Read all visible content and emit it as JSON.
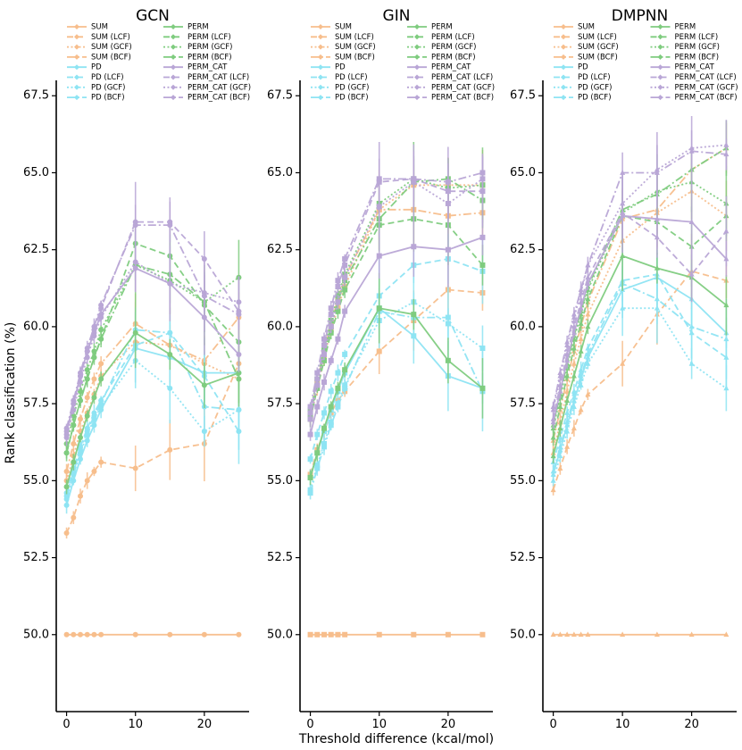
{
  "chart_data": {
    "type": "line",
    "title": "",
    "xlabel": "Threshold difference (kcal/mol)",
    "ylabel": "Rank classification (%)",
    "x": [
      0,
      1,
      2,
      3,
      4,
      5,
      10,
      15,
      20,
      25
    ],
    "xticks": [
      "0",
      "10",
      "20"
    ],
    "xlim": [
      -1.5,
      26.5
    ],
    "yticks": [
      "50.0",
      "52.5",
      "55.0",
      "57.5",
      "60.0",
      "62.5",
      "65.0",
      "67.5"
    ],
    "ylim": [
      47.5,
      68
    ],
    "colors": {
      "SUM": "#f7be8c",
      "PD": "#8ee4f3",
      "PERM": "#7fcc7f",
      "PERM_CAT": "#b9a6d6"
    },
    "legend": [
      [
        "SUM",
        "SUM (LCF)",
        "SUM (GCF)",
        "SUM (BCF)",
        "PD",
        "PD (LCF)",
        "PD (GCF)",
        "PD (BCF)"
      ],
      [
        "PERM",
        "PERM (LCF)",
        "PERM (GCF)",
        "PERM (BCF)",
        "PERM_CAT",
        "PERM_CAT (LCF)",
        "PERM_CAT (GCF)",
        "PERM_CAT (BCF)"
      ]
    ],
    "panels": [
      {
        "title": "GCN",
        "marker": "circle",
        "series": [
          {
            "name": "SUM",
            "values": [
              50,
              50,
              50,
              50,
              50,
              50,
              50,
              50,
              50,
              50
            ]
          },
          {
            "name": "SUM (LCF)",
            "values": [
              53.3,
              53.8,
              54.5,
              55.0,
              55.3,
              55.6,
              55.4,
              56.0,
              56.2,
              58.8
            ]
          },
          {
            "name": "SUM (GCF)",
            "values": [
              55.0,
              55.8,
              56.6,
              57.2,
              57.8,
              58.4,
              59.5,
              59.4,
              58.8,
              58.3
            ]
          },
          {
            "name": "SUM (BCF)",
            "values": [
              55.3,
              56.2,
              57.0,
              57.7,
              58.3,
              58.8,
              60.1,
              59.4,
              58.9,
              60.3
            ]
          },
          {
            "name": "PD",
            "values": [
              54.2,
              55.0,
              55.7,
              56.3,
              56.8,
              57.3,
              59.3,
              59.0,
              58.5,
              58.5
            ]
          },
          {
            "name": "PD (LCF)",
            "values": [
              54.6,
              55.4,
              56.1,
              56.7,
              57.2,
              57.6,
              59.4,
              59.8,
              58.4,
              56.6
            ]
          },
          {
            "name": "PD (GCF)",
            "values": [
              54.4,
              55.2,
              55.9,
              56.5,
              57.0,
              57.4,
              58.9,
              58.0,
              56.6,
              57.3
            ]
          },
          {
            "name": "PD (BCF)",
            "values": [
              54.5,
              55.3,
              56.0,
              56.6,
              57.1,
              57.5,
              59.9,
              59.8,
              57.4,
              57.3
            ]
          },
          {
            "name": "PERM",
            "values": [
              54.8,
              55.6,
              56.4,
              57.1,
              57.7,
              58.3,
              59.8,
              59.1,
              58.1,
              58.5
            ]
          },
          {
            "name": "PERM (LCF)",
            "values": [
              55.9,
              56.8,
              57.6,
              58.3,
              59.0,
              59.6,
              62.7,
              62.3,
              60.7,
              59.5
            ]
          },
          {
            "name": "PERM (GCF)",
            "values": [
              56.2,
              57.1,
              57.9,
              58.6,
              59.2,
              59.9,
              62.0,
              61.5,
              60.8,
              61.6
            ]
          },
          {
            "name": "PERM (BCF)",
            "values": [
              55.9,
              56.8,
              57.6,
              58.3,
              59.0,
              59.6,
              62.0,
              61.7,
              60.8,
              58.3
            ]
          },
          {
            "name": "PERM_CAT",
            "values": [
              56.6,
              57.5,
              58.4,
              59.2,
              59.8,
              60.4,
              61.9,
              61.4,
              60.3,
              59.1
            ]
          },
          {
            "name": "PERM_CAT (LCF)",
            "values": [
              56.5,
              57.5,
              58.4,
              59.2,
              59.9,
              60.6,
              63.4,
              63.4,
              62.2,
              60.5
            ]
          },
          {
            "name": "PERM_CAT (GCF)",
            "values": [
              56.4,
              57.3,
              58.2,
              59.0,
              59.7,
              60.3,
              62.1,
              61.4,
              61.1,
              60.8
            ]
          },
          {
            "name": "PERM_CAT (BCF)",
            "values": [
              56.7,
              57.6,
              58.5,
              59.3,
              60.0,
              60.7,
              63.3,
              63.3,
              61.0,
              60.4
            ]
          }
        ]
      },
      {
        "title": "GIN",
        "marker": "square",
        "series": [
          {
            "name": "SUM",
            "values": [
              50,
              50,
              50,
              50,
              50,
              50,
              50,
              50,
              50,
              50
            ]
          },
          {
            "name": "SUM (LCF)",
            "values": [
              55.2,
              56.0,
              56.6,
              57.2,
              57.6,
              57.9,
              59.2,
              60.2,
              61.2,
              61.1
            ]
          },
          {
            "name": "SUM (GCF)",
            "values": [
              57.0,
              58.0,
              59.0,
              59.9,
              60.6,
              61.3,
              63.8,
              64.6,
              64.6,
              64.6
            ]
          },
          {
            "name": "SUM (BCF)",
            "values": [
              57.1,
              58.2,
              59.2,
              60.1,
              60.9,
              61.6,
              63.8,
              63.8,
              63.6,
              63.7
            ]
          },
          {
            "name": "PD",
            "values": [
              55.1,
              55.9,
              56.6,
              57.3,
              57.9,
              58.5,
              60.6,
              59.7,
              58.4,
              58.0
            ]
          },
          {
            "name": "PD (LCF)",
            "values": [
              55.7,
              56.5,
              57.2,
              57.9,
              58.5,
              59.1,
              61.0,
              62.0,
              62.2,
              61.8
            ]
          },
          {
            "name": "PD (GCF)",
            "values": [
              54.7,
              55.5,
              56.2,
              56.9,
              57.5,
              58.1,
              60.2,
              60.8,
              60.1,
              59.3
            ]
          },
          {
            "name": "PD (BCF)",
            "values": [
              54.6,
              55.4,
              56.1,
              56.8,
              57.4,
              58.0,
              60.5,
              60.3,
              60.3,
              57.9
            ]
          },
          {
            "name": "PERM",
            "values": [
              55.1,
              55.9,
              56.7,
              57.4,
              58.0,
              58.6,
              60.6,
              60.4,
              58.9,
              58.0
            ]
          },
          {
            "name": "PERM (LCF)",
            "values": [
              57.0,
              58.0,
              58.9,
              59.8,
              60.5,
              61.2,
              63.3,
              63.5,
              63.3,
              62.0
            ]
          },
          {
            "name": "PERM (GCF)",
            "values": [
              57.3,
              58.3,
              59.3,
              60.2,
              61.0,
              61.7,
              64.0,
              64.8,
              64.5,
              64.6
            ]
          },
          {
            "name": "PERM (BCF)",
            "values": [
              57.1,
              58.1,
              59.1,
              60.0,
              60.8,
              61.5,
              63.5,
              64.7,
              64.8,
              64.1
            ]
          },
          {
            "name": "PERM_CAT",
            "values": [
              56.5,
              57.4,
              58.2,
              58.9,
              59.6,
              60.5,
              62.3,
              62.6,
              62.5,
              62.9
            ]
          },
          {
            "name": "PERM_CAT (LCF)",
            "values": [
              57.2,
              58.3,
              59.4,
              60.4,
              61.3,
              62.0,
              64.7,
              64.8,
              64.4,
              64.4
            ]
          },
          {
            "name": "PERM_CAT (GCF)",
            "values": [
              57.0,
              58.1,
              59.1,
              60.0,
              60.8,
              61.6,
              63.9,
              64.7,
              64.0,
              64.8
            ]
          },
          {
            "name": "PERM_CAT (BCF)",
            "values": [
              57.4,
              58.5,
              59.6,
              60.6,
              61.5,
              62.2,
              64.8,
              64.8,
              64.7,
              65.0
            ]
          }
        ]
      },
      {
        "title": "DMPNN",
        "marker": "triangle",
        "series": [
          {
            "name": "SUM",
            "values": [
              50,
              50,
              50,
              50,
              50,
              50,
              50,
              50,
              50,
              50
            ]
          },
          {
            "name": "SUM (LCF)",
            "values": [
              54.7,
              55.4,
              56.1,
              56.7,
              57.3,
              57.8,
              58.8,
              60.4,
              61.8,
              61.5
            ]
          },
          {
            "name": "SUM (GCF)",
            "values": [
              55.9,
              56.9,
              57.9,
              58.8,
              59.6,
              60.4,
              62.8,
              63.7,
              64.4,
              63.6
            ]
          },
          {
            "name": "SUM (BCF)",
            "values": [
              56.3,
              57.3,
              58.3,
              59.2,
              60.0,
              60.8,
              63.5,
              63.8,
              65.1,
              65.8
            ]
          },
          {
            "name": "PD",
            "values": [
              55.2,
              56.0,
              56.8,
              57.6,
              58.3,
              59.0,
              61.2,
              61.6,
              60.9,
              59.8
            ]
          },
          {
            "name": "PD (LCF)",
            "values": [
              55.6,
              56.4,
              57.2,
              57.9,
              58.6,
              59.3,
              61.5,
              61.7,
              59.8,
              59.0
            ]
          },
          {
            "name": "PD (GCF)",
            "values": [
              55.0,
              55.8,
              56.6,
              57.4,
              58.1,
              58.8,
              60.6,
              60.6,
              58.8,
              58.0
            ]
          },
          {
            "name": "PD (BCF)",
            "values": [
              55.3,
              56.1,
              56.9,
              57.7,
              58.4,
              59.1,
              61.4,
              60.9,
              60.0,
              59.6
            ]
          },
          {
            "name": "PERM",
            "values": [
              55.8,
              56.7,
              57.6,
              58.4,
              59.2,
              60.0,
              62.3,
              61.9,
              61.6,
              60.7
            ]
          },
          {
            "name": "PERM (LCF)",
            "values": [
              56.4,
              57.4,
              58.4,
              59.3,
              60.1,
              60.9,
              63.6,
              63.4,
              62.6,
              63.6
            ]
          },
          {
            "name": "PERM (GCF)",
            "values": [
              56.7,
              57.7,
              58.7,
              59.6,
              60.4,
              61.2,
              63.7,
              64.4,
              64.7,
              64.0
            ]
          },
          {
            "name": "PERM (BCF)",
            "values": [
              56.8,
              57.8,
              58.8,
              59.7,
              60.5,
              61.3,
              63.8,
              64.3,
              65.1,
              65.8
            ]
          },
          {
            "name": "PERM_CAT",
            "values": [
              56.9,
              57.9,
              58.9,
              59.8,
              60.6,
              61.4,
              63.6,
              63.5,
              63.4,
              62.2
            ]
          },
          {
            "name": "PERM_CAT (LCF)",
            "values": [
              57.0,
              58.1,
              59.1,
              60.0,
              60.8,
              61.6,
              63.7,
              62.9,
              61.7,
              63.1
            ]
          },
          {
            "name": "PERM_CAT (GCF)",
            "values": [
              57.3,
              58.4,
              59.4,
              60.3,
              61.1,
              62.0,
              64.0,
              65.1,
              65.8,
              65.9
            ]
          },
          {
            "name": "PERM_CAT (BCF)",
            "values": [
              57.4,
              58.5,
              59.5,
              60.4,
              61.2,
              62.0,
              65.0,
              65.0,
              65.7,
              65.6
            ]
          }
        ]
      }
    ]
  }
}
